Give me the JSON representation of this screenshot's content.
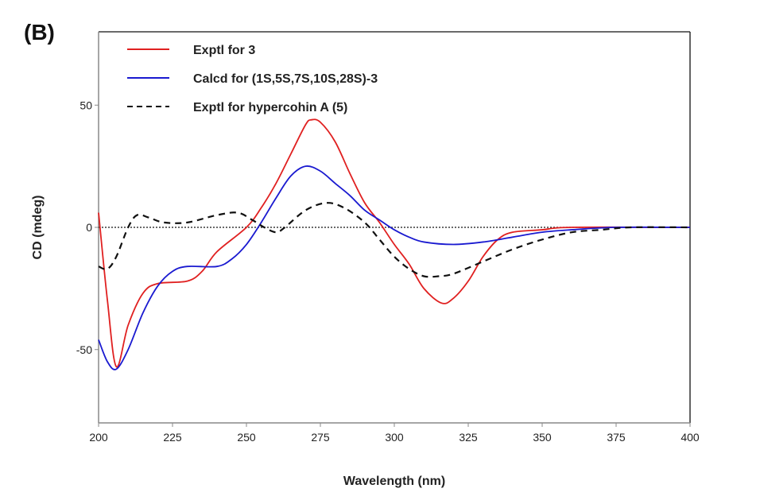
{
  "panel_label": "(B)",
  "chart_data": {
    "type": "line",
    "title": "",
    "xlabel": "Wavelength (nm)",
    "ylabel": "CD (mdeg)",
    "xlim": [
      200,
      400
    ],
    "ylim": [
      -80,
      80
    ],
    "xticks": [
      200,
      225,
      250,
      275,
      300,
      325,
      350,
      375,
      400
    ],
    "yticks": [
      50,
      0,
      -50
    ],
    "zero_line": true,
    "legend_position": "top-left",
    "series": [
      {
        "name": "Exptl for 3",
        "color": "#e02020",
        "style": "solid",
        "x": [
          200,
          203,
          206,
          210,
          215,
          220,
          230,
          235,
          240,
          250,
          255,
          260,
          265,
          270,
          272,
          275,
          280,
          285,
          290,
          295,
          300,
          305,
          310,
          316,
          320,
          325,
          330,
          335,
          340,
          350,
          360,
          400
        ],
        "y": [
          6,
          -30,
          -57,
          -40,
          -27,
          -23,
          -22,
          -18,
          -10,
          0,
          8,
          18,
          30,
          42,
          44,
          43,
          35,
          22,
          10,
          2,
          -7,
          -15,
          -25,
          -31,
          -29,
          -22,
          -12,
          -5,
          -2,
          -1,
          0,
          0
        ]
      },
      {
        "name": "Calcd for (1S,5S,7S,10S,28S)-3",
        "color": "#1a1ad0",
        "style": "solid",
        "x": [
          200,
          203,
          206,
          210,
          215,
          220,
          225,
          230,
          240,
          245,
          250,
          255,
          260,
          265,
          270,
          275,
          280,
          285,
          290,
          295,
          300,
          305,
          310,
          320,
          330,
          340,
          350,
          360,
          375,
          400
        ],
        "y": [
          -46,
          -55,
          -58,
          -50,
          -35,
          -24,
          -18,
          -16,
          -16,
          -13,
          -7,
          2,
          12,
          21,
          25,
          23,
          18,
          13,
          7,
          3,
          -1,
          -4,
          -6,
          -7,
          -6,
          -4,
          -2,
          -1,
          0,
          0
        ]
      },
      {
        "name": "Exptl for hypercohin A (5)",
        "color": "#111111",
        "style": "dashed",
        "x": [
          200,
          203,
          206,
          210,
          213,
          217,
          222,
          230,
          240,
          247,
          252,
          256,
          260,
          263,
          270,
          277,
          283,
          290,
          295,
          300,
          305,
          310,
          315,
          320,
          330,
          340,
          350,
          360,
          370,
          380,
          400
        ],
        "y": [
          -16,
          -17,
          -12,
          0,
          5,
          4,
          2,
          2,
          5,
          6,
          3,
          0,
          -2,
          0,
          7,
          10,
          8,
          2,
          -5,
          -12,
          -17,
          -20,
          -20,
          -19,
          -14,
          -9,
          -5,
          -2,
          -1,
          0,
          0
        ]
      }
    ]
  }
}
